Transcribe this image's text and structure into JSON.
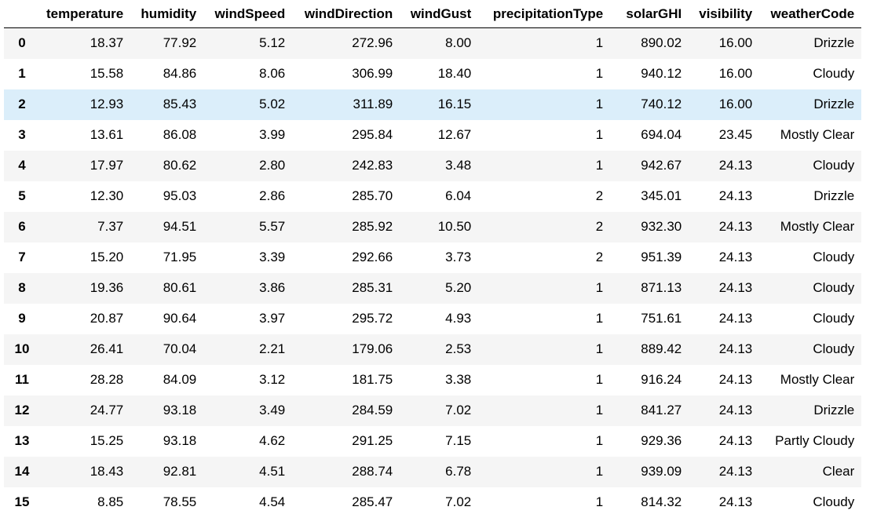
{
  "table": {
    "index_header": "",
    "columns": [
      "temperature",
      "humidity",
      "windSpeed",
      "windDirection",
      "windGust",
      "precipitationType",
      "solarGHI",
      "visibility",
      "weatherCode"
    ],
    "selected_row": 2,
    "selected_row_color": "#dbeefa",
    "stripe_color": "#f5f5f5",
    "rows": [
      {
        "index": "0",
        "cells": [
          "18.37",
          "77.92",
          "5.12",
          "272.96",
          "8.00",
          "1",
          "890.02",
          "16.00",
          "Drizzle"
        ]
      },
      {
        "index": "1",
        "cells": [
          "15.58",
          "84.86",
          "8.06",
          "306.99",
          "18.40",
          "1",
          "940.12",
          "16.00",
          "Cloudy"
        ]
      },
      {
        "index": "2",
        "cells": [
          "12.93",
          "85.43",
          "5.02",
          "311.89",
          "16.15",
          "1",
          "740.12",
          "16.00",
          "Drizzle"
        ]
      },
      {
        "index": "3",
        "cells": [
          "13.61",
          "86.08",
          "3.99",
          "295.84",
          "12.67",
          "1",
          "694.04",
          "23.45",
          "Mostly Clear"
        ]
      },
      {
        "index": "4",
        "cells": [
          "17.97",
          "80.62",
          "2.80",
          "242.83",
          "3.48",
          "1",
          "942.67",
          "24.13",
          "Cloudy"
        ]
      },
      {
        "index": "5",
        "cells": [
          "12.30",
          "95.03",
          "2.86",
          "285.70",
          "6.04",
          "2",
          "345.01",
          "24.13",
          "Drizzle"
        ]
      },
      {
        "index": "6",
        "cells": [
          "7.37",
          "94.51",
          "5.57",
          "285.92",
          "10.50",
          "2",
          "932.30",
          "24.13",
          "Mostly Clear"
        ]
      },
      {
        "index": "7",
        "cells": [
          "15.20",
          "71.95",
          "3.39",
          "292.66",
          "3.73",
          "2",
          "951.39",
          "24.13",
          "Cloudy"
        ]
      },
      {
        "index": "8",
        "cells": [
          "19.36",
          "80.61",
          "3.86",
          "285.31",
          "5.20",
          "1",
          "871.13",
          "24.13",
          "Cloudy"
        ]
      },
      {
        "index": "9",
        "cells": [
          "20.87",
          "90.64",
          "3.97",
          "295.72",
          "4.93",
          "1",
          "751.61",
          "24.13",
          "Cloudy"
        ]
      },
      {
        "index": "10",
        "cells": [
          "26.41",
          "70.04",
          "2.21",
          "179.06",
          "2.53",
          "1",
          "889.42",
          "24.13",
          "Cloudy"
        ]
      },
      {
        "index": "11",
        "cells": [
          "28.28",
          "84.09",
          "3.12",
          "181.75",
          "3.38",
          "1",
          "916.24",
          "24.13",
          "Mostly Clear"
        ]
      },
      {
        "index": "12",
        "cells": [
          "24.77",
          "93.18",
          "3.49",
          "284.59",
          "7.02",
          "1",
          "841.27",
          "24.13",
          "Drizzle"
        ]
      },
      {
        "index": "13",
        "cells": [
          "15.25",
          "93.18",
          "4.62",
          "291.25",
          "7.15",
          "1",
          "929.36",
          "24.13",
          "Partly Cloudy"
        ]
      },
      {
        "index": "14",
        "cells": [
          "18.43",
          "92.81",
          "4.51",
          "288.74",
          "6.78",
          "1",
          "939.09",
          "24.13",
          "Clear"
        ]
      },
      {
        "index": "15",
        "cells": [
          "8.85",
          "78.55",
          "4.54",
          "285.47",
          "7.02",
          "1",
          "814.32",
          "24.13",
          "Cloudy"
        ]
      }
    ]
  }
}
